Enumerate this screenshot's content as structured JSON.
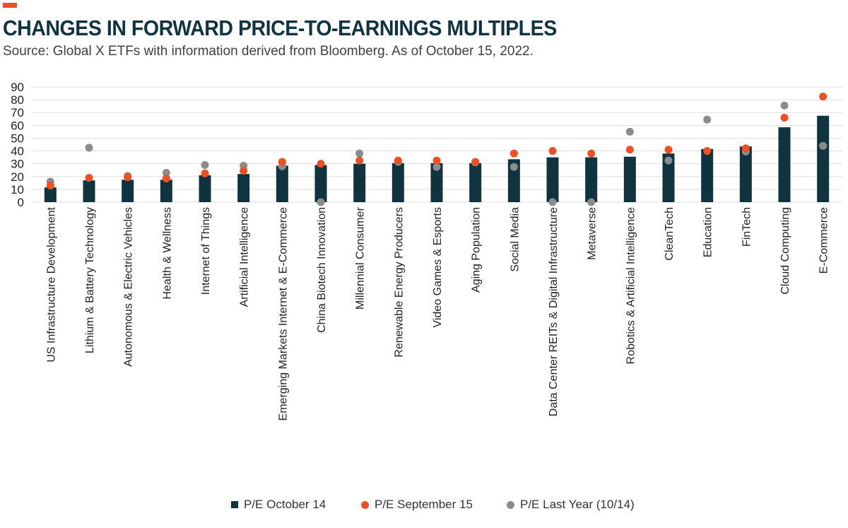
{
  "header": {
    "title": "CHANGES IN FORWARD PRICE-TO-EARNINGS MULTIPLES",
    "subtitle": "Source: Global X ETFs with information derived from Bloomberg. As of October 15, 2022."
  },
  "colors": {
    "accent": "#f04e23",
    "bar": "#0f3440",
    "sept": "#f04e23",
    "last_year": "#8c8c8c",
    "grid": "#dddddd",
    "title": "#0f3440"
  },
  "chart_data": {
    "type": "bar",
    "title": "CHANGES IN FORWARD PRICE-TO-EARNINGS MULTIPLES",
    "xlabel": "",
    "ylabel": "",
    "ylim": [
      0,
      90
    ],
    "yticks": [
      0,
      10,
      20,
      30,
      40,
      50,
      60,
      70,
      80,
      90
    ],
    "grid": true,
    "legend_position": "bottom",
    "categories": [
      "US Infrastructure Development",
      "Lithium & Battery Technology",
      "Autonomous & Electric Vehicles",
      "Health & Wellness",
      "Internet of Things",
      "Artificial Intelligence",
      "Emerging Markets Internet & E-Commerce",
      "China Biotech Innovation",
      "Millennial Consumer",
      "Renewable Energy Producers",
      "Video Games & Esports",
      "Aging Population",
      "Social Media",
      "Data Center REITs & Digital Infrastructure",
      "Metaverse",
      "Robotics & Artificial Intelligence",
      "CleanTech",
      "Education",
      "FinTech",
      "Cloud Computing",
      "E-Commerce"
    ],
    "series": [
      {
        "name": "P/E October 14",
        "kind": "bar",
        "values": [
          11.5,
          17,
          17.5,
          17.5,
          21,
          22,
          28.5,
          29,
          30,
          30.5,
          30.5,
          30.5,
          33.5,
          35,
          35,
          35.5,
          38,
          41.5,
          43.5,
          58.5,
          67.5
        ]
      },
      {
        "name": "P/E September 15",
        "kind": "dot",
        "values": [
          13,
          19,
          19.5,
          18.5,
          22.5,
          24.5,
          31.5,
          30,
          32.5,
          32.5,
          32.5,
          31.5,
          38,
          40,
          38,
          41,
          41,
          40,
          42,
          66,
          82.5
        ]
      },
      {
        "name": "P/E Last Year (10/14)",
        "kind": "dot",
        "values": [
          16,
          42.5,
          20.5,
          23,
          29,
          28.5,
          28,
          0,
          38,
          31.5,
          27.5,
          31,
          27.5,
          0,
          0,
          55,
          32.5,
          64.5,
          39.5,
          75.5,
          44
        ]
      }
    ]
  },
  "legend": {
    "items": [
      "P/E October 14",
      "P/E September 15",
      "P/E Last Year (10/14)"
    ]
  }
}
